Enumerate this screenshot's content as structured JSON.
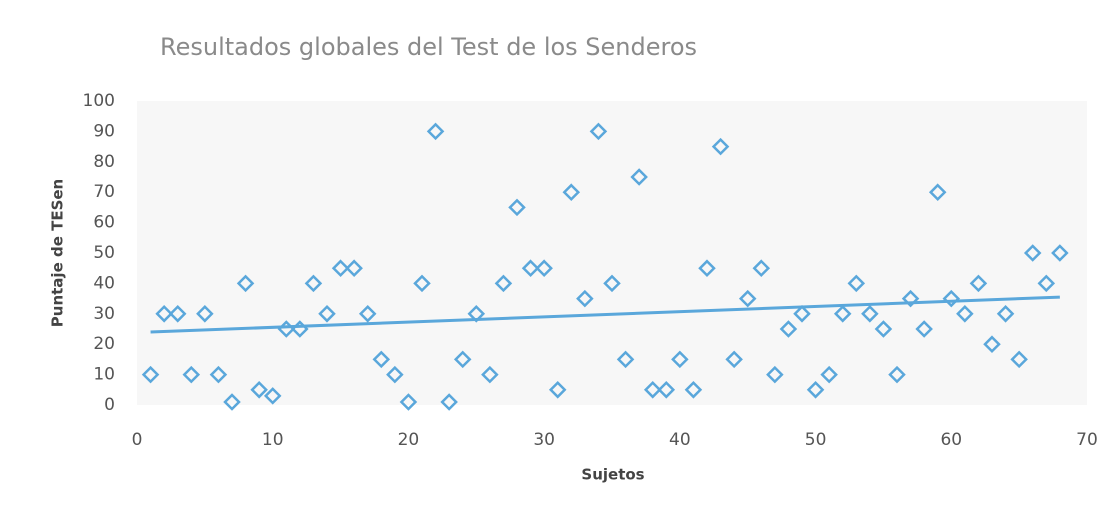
{
  "chart_data": {
    "type": "scatter",
    "title": "Resultados globales del Test de los Senderos",
    "x_label": "Sujetos",
    "y_label": "Puntaje de TESen",
    "series": [
      {
        "name": null,
        "color": "#5aa7db",
        "x": [
          1,
          2,
          3,
          4,
          5,
          6,
          7,
          8,
          9,
          10,
          11,
          12,
          13,
          14,
          15,
          16,
          17,
          18,
          19,
          20,
          21,
          22,
          23,
          24,
          25,
          26,
          27,
          28,
          29,
          30,
          31,
          32,
          33,
          34,
          35,
          36,
          37,
          38,
          39,
          40,
          41,
          42,
          43,
          44,
          45,
          46,
          47,
          48,
          49,
          50,
          51,
          52,
          53,
          54,
          55,
          56,
          57,
          58,
          59,
          60,
          61,
          62,
          63,
          64,
          65,
          66,
          67,
          68
        ],
        "values": [
          10,
          30,
          30,
          10,
          30,
          10,
          1,
          40,
          5,
          3,
          25,
          25,
          40,
          30,
          45,
          45,
          30,
          15,
          10,
          1,
          40,
          90,
          1,
          15,
          30,
          10,
          40,
          65,
          45,
          45,
          5,
          70,
          35,
          90,
          40,
          15,
          75,
          5,
          5,
          15,
          5,
          45,
          85,
          15,
          35,
          45,
          10,
          25,
          30,
          5,
          10,
          30,
          40,
          30,
          25,
          10,
          35,
          25,
          70,
          35,
          30,
          40,
          20,
          30,
          15,
          50,
          40,
          50
        ]
      }
    ],
    "trendline": {
      "color": "#5aa7db",
      "x": [
        1,
        68
      ],
      "values": [
        24,
        35.5
      ]
    },
    "xlim": [
      0,
      70
    ],
    "xticks": [
      0,
      10,
      20,
      30,
      40,
      50,
      60,
      70
    ],
    "ylim": [
      0,
      100
    ],
    "yticks": [
      0,
      10,
      20,
      30,
      40,
      50,
      60,
      70,
      80,
      90,
      100
    ]
  }
}
